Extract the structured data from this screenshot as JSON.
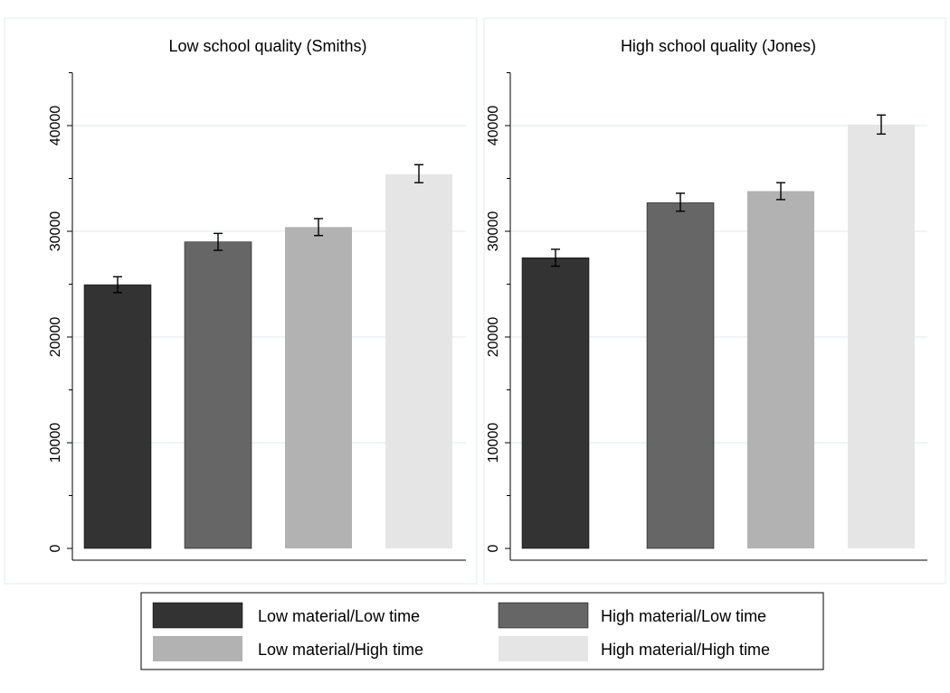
{
  "colors": {
    "low_material_low_time": "#333333",
    "high_material_low_time": "#666666",
    "low_material_high_time": "#b2b2b2",
    "high_material_high_time": "#e5e5e5",
    "gridline": "#eaf0f3",
    "panel_border": "#e6ebef"
  },
  "chart_data": [
    {
      "type": "bar",
      "title": "Low school quality (Smiths)",
      "xlabel": "",
      "ylabel": "",
      "ylim": [
        0,
        45000
      ],
      "yticks": [
        0,
        10000,
        20000,
        30000,
        40000
      ],
      "ytick_labels": [
        "0",
        "10000",
        "20000",
        "30000",
        "40000"
      ],
      "grid": true,
      "series": [
        {
          "name": "Low material/Low time",
          "value": 24950,
          "error_low": 24200,
          "error_high": 25700
        },
        {
          "name": "High material/Low time",
          "value": 29000,
          "error_low": 28200,
          "error_high": 29800
        },
        {
          "name": "Low material/High time",
          "value": 30400,
          "error_low": 29600,
          "error_high": 31200
        },
        {
          "name": "High material/High time",
          "value": 35400,
          "error_low": 34600,
          "error_high": 36300
        }
      ]
    },
    {
      "type": "bar",
      "title": "High school quality (Jones)",
      "xlabel": "",
      "ylabel": "",
      "ylim": [
        0,
        45000
      ],
      "yticks": [
        0,
        10000,
        20000,
        30000,
        40000
      ],
      "ytick_labels": [
        "0",
        "10000",
        "20000",
        "30000",
        "40000"
      ],
      "grid": true,
      "series": [
        {
          "name": "Low material/Low time",
          "value": 27500,
          "error_low": 26700,
          "error_high": 28300
        },
        {
          "name": "High material/Low time",
          "value": 32700,
          "error_low": 31900,
          "error_high": 33600
        },
        {
          "name": "Low material/High time",
          "value": 33800,
          "error_low": 33000,
          "error_high": 34600
        },
        {
          "name": "High material/High time",
          "value": 40100,
          "error_low": 39200,
          "error_high": 41000
        }
      ]
    }
  ],
  "legend": {
    "placement": "bottom",
    "entries": [
      {
        "label": "Low material/Low time",
        "color_key": "low_material_low_time"
      },
      {
        "label": "High material/Low time",
        "color_key": "high_material_low_time"
      },
      {
        "label": "Low material/High time",
        "color_key": "low_material_high_time"
      },
      {
        "label": "High material/High time",
        "color_key": "high_material_high_time"
      }
    ]
  }
}
